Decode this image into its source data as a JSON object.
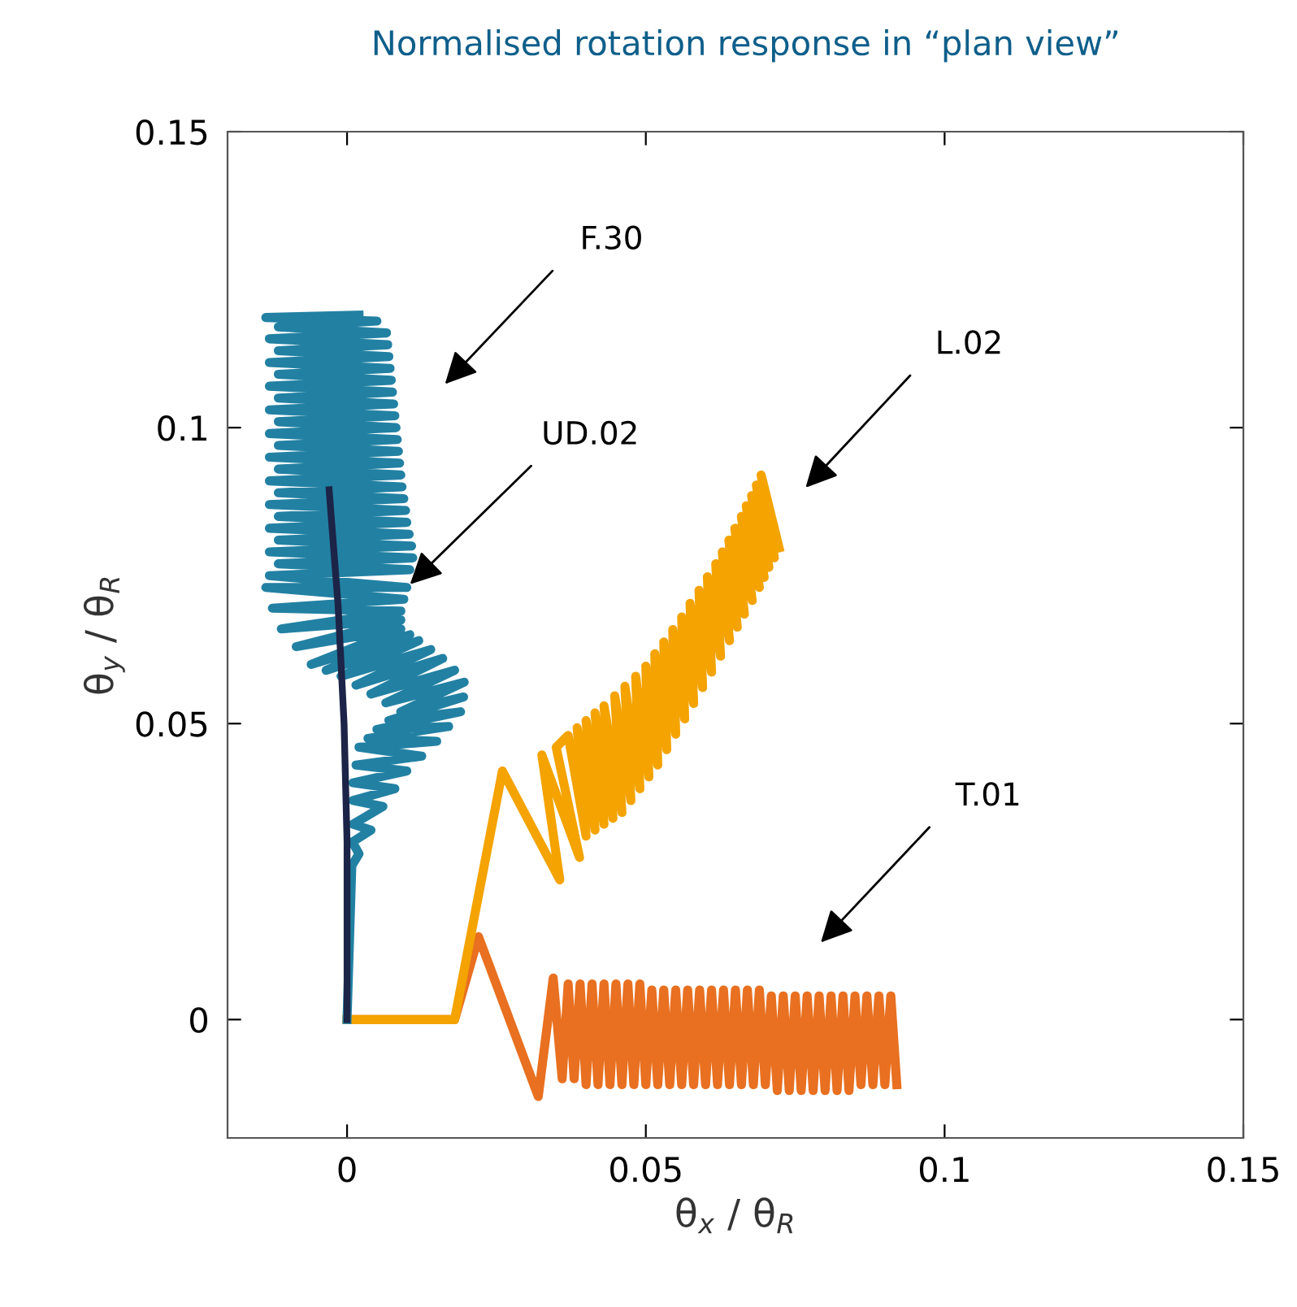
{
  "chart_data": {
    "type": "line",
    "title": "Normalised rotation response in “plan view”",
    "xlabel": "θ$_{x}$ / θ$_{R}$",
    "ylabel": "θ$_{y}$ / θ$_{R}$",
    "xlim": [
      -0.02,
      0.15
    ],
    "ylim": [
      -0.02,
      0.15
    ],
    "xticks": [
      0,
      0.05,
      0.1,
      0.15
    ],
    "yticks": [
      0,
      0.05,
      0.1,
      0.15
    ],
    "grid": false,
    "marker": "none",
    "line_style": "solid",
    "series": [
      {
        "color": "#e87020",
        "x": [
          0,
          0.018,
          0.022,
          0.032,
          0.0345,
          0.036,
          0.037,
          0.038,
          0.039,
          0.04,
          0.041,
          0.042,
          0.043,
          0.044,
          0.045,
          0.046,
          0.047,
          0.048,
          0.049,
          0.05,
          0.051,
          0.052,
          0.053,
          0.054,
          0.055,
          0.056,
          0.057,
          0.058,
          0.059,
          0.06,
          0.061,
          0.062,
          0.063,
          0.064,
          0.065,
          0.066,
          0.067,
          0.068,
          0.069,
          0.07,
          0.071,
          0.072,
          0.073,
          0.074,
          0.075,
          0.076,
          0.077,
          0.078,
          0.079,
          0.08,
          0.081,
          0.082,
          0.083,
          0.084,
          0.085,
          0.086,
          0.087,
          0.088,
          0.089,
          0.09,
          0.091,
          0.092
        ],
        "values": [
          0,
          0,
          0.014,
          -0.013,
          0.007,
          -0.01,
          0.006,
          -0.01,
          0.006,
          -0.011,
          0.006,
          -0.011,
          0.006,
          -0.011,
          0.006,
          -0.011,
          0.006,
          -0.011,
          0.006,
          -0.011,
          0.005,
          -0.011,
          0.005,
          -0.011,
          0.005,
          -0.011,
          0.005,
          -0.011,
          0.005,
          -0.011,
          0.005,
          -0.011,
          0.005,
          -0.011,
          0.005,
          -0.011,
          0.005,
          -0.011,
          0.005,
          -0.011,
          0.004,
          -0.012,
          0.004,
          -0.012,
          0.004,
          -0.012,
          0.004,
          -0.012,
          0.004,
          -0.012,
          0.004,
          -0.012,
          0.004,
          -0.012,
          0.004,
          -0.011,
          0.004,
          -0.011,
          0.004,
          -0.011,
          0.004,
          -0.011
        ]
      },
      {
        "color": "#f4a300",
        "x": [
          0,
          0.018,
          0.026,
          0.0356,
          0.0326,
          0.0389,
          0.035,
          0.037,
          0.04,
          0.0385,
          0.0415,
          0.04,
          0.043,
          0.0415,
          0.0445,
          0.043,
          0.046,
          0.0448,
          0.0475,
          0.0465,
          0.049,
          0.0483,
          0.0505,
          0.05,
          0.052,
          0.0515,
          0.0535,
          0.053,
          0.055,
          0.0545,
          0.0565,
          0.056,
          0.058,
          0.0574,
          0.0595,
          0.0589,
          0.061,
          0.0603,
          0.0625,
          0.0617,
          0.064,
          0.0628,
          0.0653,
          0.0639,
          0.0665,
          0.0649,
          0.0678,
          0.066,
          0.069,
          0.0668,
          0.0698,
          0.0677,
          0.0706,
          0.0685,
          0.0715,
          0.0693,
          0.0723
        ],
        "values": [
          0,
          0,
          0.042,
          0.0236,
          0.0447,
          0.0274,
          0.046,
          0.048,
          0.031,
          0.0493,
          0.032,
          0.0505,
          0.033,
          0.0518,
          0.034,
          0.053,
          0.035,
          0.0547,
          0.037,
          0.0563,
          0.039,
          0.058,
          0.041,
          0.0597,
          0.043,
          0.0618,
          0.0456,
          0.0638,
          0.0482,
          0.0659,
          0.0508,
          0.068,
          0.0534,
          0.0703,
          0.0561,
          0.0725,
          0.0587,
          0.0748,
          0.0614,
          0.077,
          0.064,
          0.079,
          0.0663,
          0.081,
          0.0685,
          0.083,
          0.0708,
          0.085,
          0.073,
          0.0868,
          0.0747,
          0.0885,
          0.0764,
          0.0903,
          0.078,
          0.092,
          0.0797
        ]
      },
      {
        "color": "#2281a3",
        "x": [
          0,
          0.0008,
          0.002,
          0.0009,
          0.004,
          0.001,
          0.006,
          0.001,
          0.008,
          0.001,
          0.01,
          0.0015,
          0.0125,
          0.002,
          0.015,
          0.0035,
          0.017,
          0.005,
          0.019,
          0.007,
          0.0195,
          0.009,
          0.0196,
          0.0065,
          0.018,
          0.004,
          0.016,
          0.0015,
          0.014,
          -0.001,
          0.012,
          -0.0035,
          0.0105,
          -0.006,
          0.009,
          -0.0085,
          0.009,
          -0.011,
          0.009,
          -0.0125,
          0.0095,
          -0.0136,
          0.01,
          -0.013,
          0.0105,
          -0.0115,
          0.011,
          -0.013,
          0.0108,
          -0.0115,
          0.0104,
          -0.013,
          0.01,
          -0.0115,
          0.0098,
          -0.013,
          0.0095,
          -0.0115,
          0.0092,
          -0.013,
          0.009,
          -0.0115,
          0.0088,
          -0.013,
          0.0086,
          -0.0115,
          0.0084,
          -0.013,
          0.0082,
          -0.0115,
          0.008,
          -0.013,
          0.0078,
          -0.0115,
          0.0076,
          -0.013,
          0.0074,
          -0.0115,
          0.0072,
          -0.013,
          0.007,
          -0.0115,
          0.0068,
          -0.013,
          0.0066,
          -0.0115,
          0.005,
          -0.0136,
          0.002
        ],
        "values": [
          0,
          0.026,
          0.028,
          0.03,
          0.032,
          0.033,
          0.036,
          0.037,
          0.039,
          0.04,
          0.042,
          0.043,
          0.0445,
          0.046,
          0.047,
          0.0475,
          0.0495,
          0.049,
          0.052,
          0.0505,
          0.0545,
          0.052,
          0.057,
          0.0535,
          0.059,
          0.055,
          0.061,
          0.0565,
          0.0625,
          0.058,
          0.064,
          0.059,
          0.065,
          0.06,
          0.066,
          0.063,
          0.0675,
          0.066,
          0.069,
          0.0695,
          0.071,
          0.073,
          0.073,
          0.075,
          0.076,
          0.077,
          0.078,
          0.079,
          0.08,
          0.081,
          0.082,
          0.083,
          0.084,
          0.085,
          0.086,
          0.087,
          0.088,
          0.089,
          0.09,
          0.091,
          0.092,
          0.093,
          0.094,
          0.095,
          0.096,
          0.097,
          0.098,
          0.099,
          0.1,
          0.101,
          0.102,
          0.103,
          0.104,
          0.105,
          0.106,
          0.107,
          0.108,
          0.109,
          0.11,
          0.111,
          0.112,
          0.113,
          0.114,
          0.115,
          0.116,
          0.117,
          0.118,
          0.1186,
          0.119
        ]
      },
      {
        "color": "#1c2447",
        "x": [
          0,
          0,
          -0.0005,
          -0.0015,
          -0.003
        ],
        "values": [
          0,
          0.03,
          0.05,
          0.07,
          0.0895
        ]
      }
    ],
    "annotations": [
      "F.30",
      {
        "text": "UD.02",
        "x": 0.01,
        "y": 0.073
      },
      "L.02",
      "T.01"
    ]
  }
}
